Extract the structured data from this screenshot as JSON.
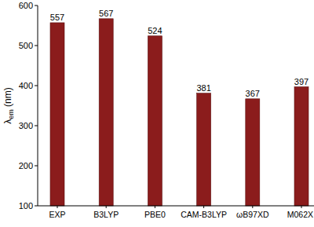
{
  "chart_data": {
    "type": "bar",
    "y_label": "λem (nm)",
    "categories": [
      "EXP",
      "B3LYP",
      "PBE0",
      "CAM-B3LYP",
      "ωB97XD",
      "M062X"
    ],
    "values": [
      557,
      567,
      524,
      381,
      367,
      397
    ],
    "color": "#8b1c1c",
    "ylim": [
      100,
      600
    ],
    "yticks": [
      100,
      200,
      300,
      400,
      500,
      600
    ],
    "grid": false,
    "data_labels": true
  }
}
